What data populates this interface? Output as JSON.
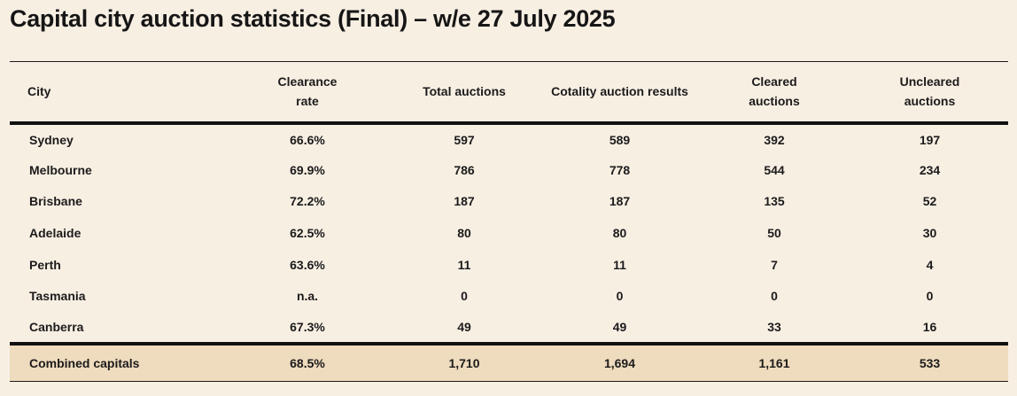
{
  "title": "Capital city auction statistics (Final) – w/e 27 July 2025",
  "columns": [
    "City",
    "Clearance rate",
    "Total auctions",
    "Cotality auction results",
    "Cleared auctions",
    "Uncleared auctions"
  ],
  "header": {
    "city": "City",
    "clearance_line1": "Clearance",
    "clearance_line2": "rate",
    "total": "Total auctions",
    "cotality": "Cotality auction results",
    "cleared_line1": "Cleared",
    "cleared_line2": "auctions",
    "uncleared_line1": "Uncleared",
    "uncleared_line2": "auctions"
  },
  "rows": [
    {
      "city": "Sydney",
      "clearance_rate": "66.6%",
      "total_auctions": "597",
      "cotality_results": "589",
      "cleared": "392",
      "uncleared": "197"
    },
    {
      "city": "Melbourne",
      "clearance_rate": "69.9%",
      "total_auctions": "786",
      "cotality_results": "778",
      "cleared": "544",
      "uncleared": "234"
    },
    {
      "city": "Brisbane",
      "clearance_rate": "72.2%",
      "total_auctions": "187",
      "cotality_results": "187",
      "cleared": "135",
      "uncleared": "52"
    },
    {
      "city": "Adelaide",
      "clearance_rate": "62.5%",
      "total_auctions": "80",
      "cotality_results": "80",
      "cleared": "50",
      "uncleared": "30"
    },
    {
      "city": "Perth",
      "clearance_rate": "63.6%",
      "total_auctions": "11",
      "cotality_results": "11",
      "cleared": "7",
      "uncleared": "4"
    },
    {
      "city": "Tasmania",
      "clearance_rate": "n.a.",
      "total_auctions": "0",
      "cotality_results": "0",
      "cleared": "0",
      "uncleared": "0"
    },
    {
      "city": "Canberra",
      "clearance_rate": "67.3%",
      "total_auctions": "49",
      "cotality_results": "49",
      "cleared": "33",
      "uncleared": "16"
    }
  ],
  "total": {
    "city": "Combined capitals",
    "clearance_rate": "68.5%",
    "total_auctions": "1,710",
    "cotality_results": "1,694",
    "cleared": "1,161",
    "uncleared": "533"
  },
  "colors": {
    "background": "#f8efe3",
    "total_row": "#efdbbd",
    "text": "#1b1b1b"
  }
}
